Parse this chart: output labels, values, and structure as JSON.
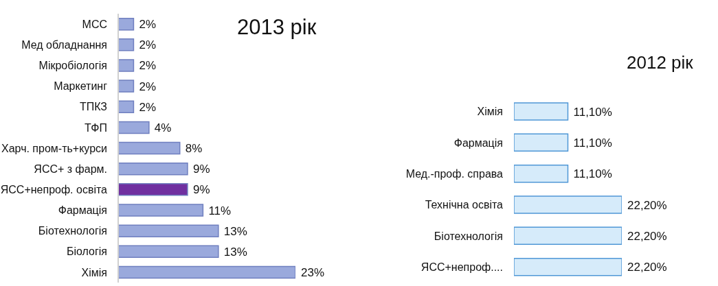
{
  "chart_data": [
    {
      "type": "bar",
      "orientation": "horizontal",
      "title": "2013 рік",
      "categories": [
        "МСС",
        "Мед обладнання",
        "Мікробіологія",
        "Маркетинг",
        "ТПКЗ",
        "ТФП",
        "Харч. пром-ть+курси",
        "ЯСС+ з фарм.",
        "ЯСС+непроф. освіта",
        "Фармація",
        "Біотехнологія",
        "Біологія",
        "Хімія"
      ],
      "values": [
        2,
        2,
        2,
        2,
        2,
        4,
        8,
        9,
        9,
        11,
        13,
        13,
        23
      ],
      "value_labels": [
        "2%",
        "2%",
        "2%",
        "2%",
        "2%",
        "4%",
        "8%",
        "9%",
        "9%",
        "11%",
        "13%",
        "13%",
        "23%"
      ],
      "colors": [
        "#9aa9dc",
        "#9aa9dc",
        "#9aa9dc",
        "#9aa9dc",
        "#9aa9dc",
        "#9aa9dc",
        "#9aa9dc",
        "#9aa9dc",
        "#7030a0",
        "#9aa9dc",
        "#9aa9dc",
        "#9aa9dc",
        "#9aa9dc"
      ]
    },
    {
      "type": "bar",
      "orientation": "horizontal",
      "title": "2012 рік",
      "categories": [
        "Хімія",
        "Фармація",
        "Мед.-проф. справа",
        "Технічна освіта",
        "Біотехнологія",
        "ЯСС+непроф...."
      ],
      "values": [
        11.1,
        11.1,
        11.1,
        22.2,
        22.2,
        22.2
      ],
      "value_labels": [
        "11,10%",
        "11,10%",
        "11,10%",
        "22,20%",
        "22,20%",
        "22,20%"
      ],
      "color": "#d6ebfa"
    }
  ]
}
